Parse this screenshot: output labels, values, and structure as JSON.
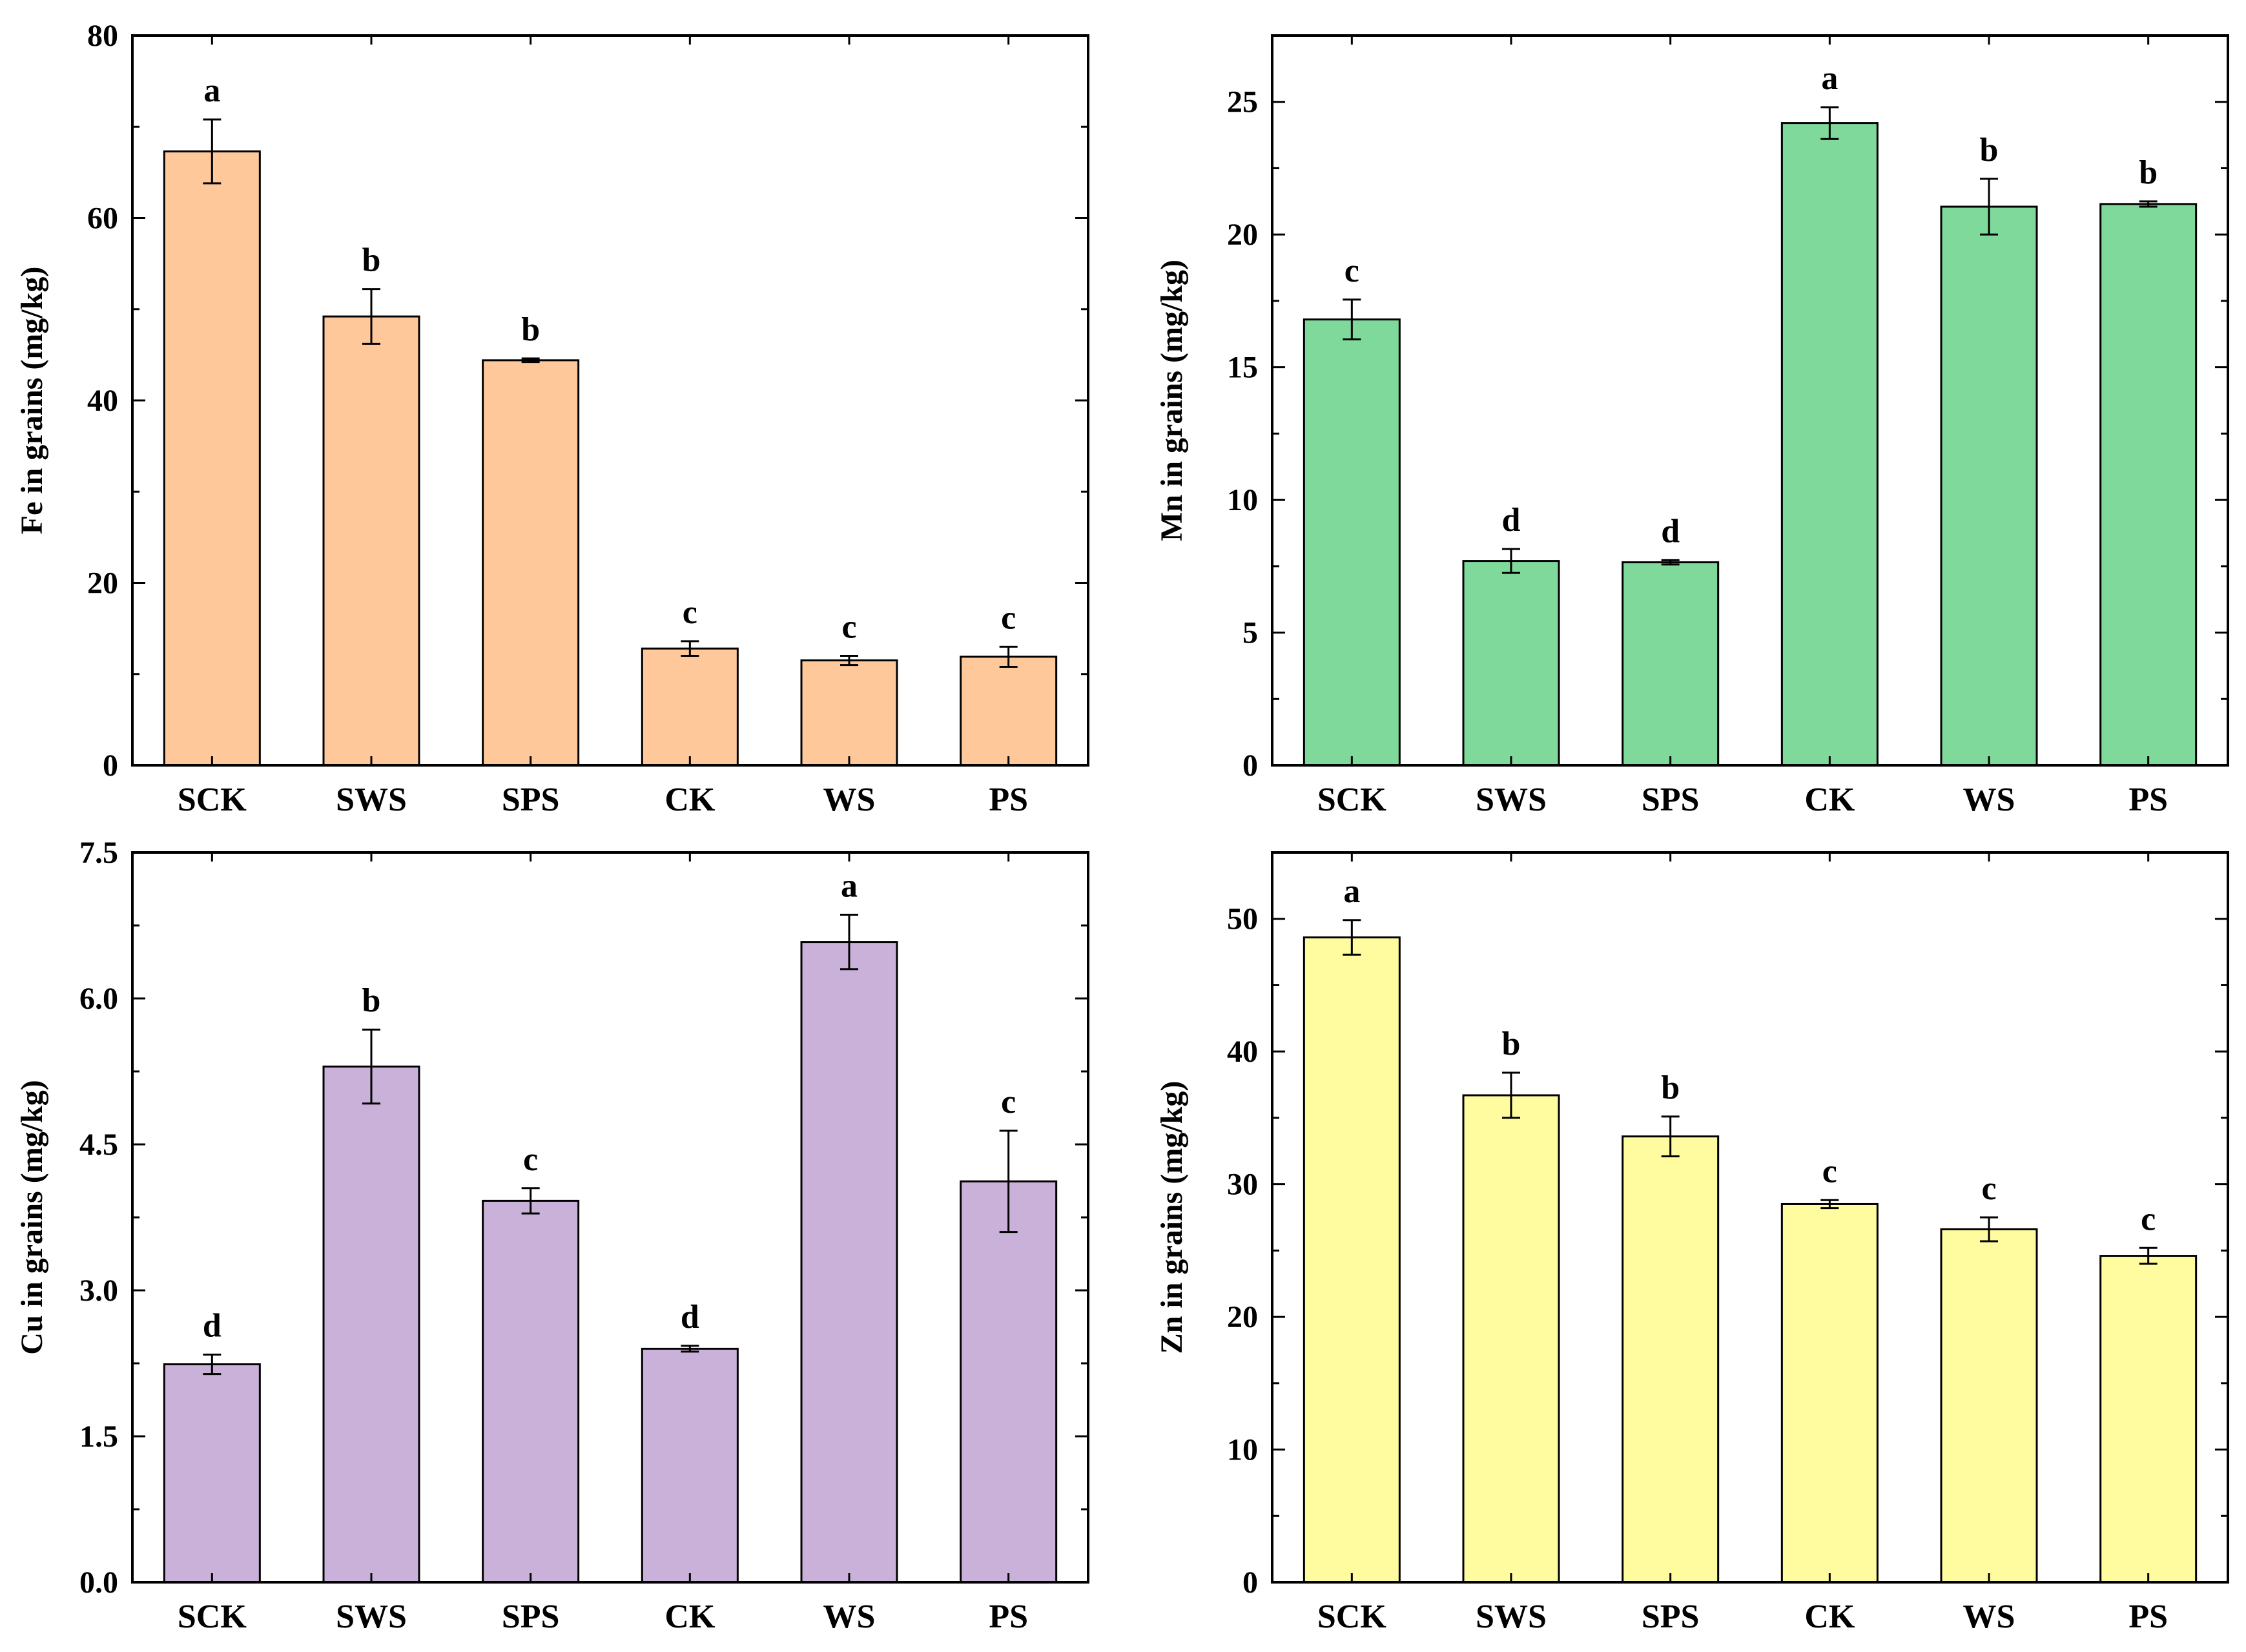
{
  "chart_data": [
    {
      "type": "bar",
      "categories": [
        "SCK",
        "SWS",
        "SPS",
        "CK",
        "WS",
        "PS"
      ],
      "values": [
        67.3,
        49.2,
        44.4,
        12.8,
        11.5,
        11.9
      ],
      "errors": [
        3.5,
        3.0,
        0.2,
        0.8,
        0.5,
        1.1
      ],
      "significance": [
        "a",
        "b",
        "b",
        "c",
        "c",
        "c"
      ],
      "title": "",
      "xlabel": "",
      "ylabel": "Fe in grains (mg/kg)",
      "ylim": [
        0,
        80
      ],
      "yticks": [
        0,
        20,
        40,
        60,
        80
      ],
      "yticklabels": [
        "0",
        "20",
        "40",
        "60",
        "80"
      ],
      "bar_color": "#ffc89a",
      "grid": false
    },
    {
      "type": "bar",
      "categories": [
        "SCK",
        "SWS",
        "SPS",
        "CK",
        "WS",
        "PS"
      ],
      "values": [
        16.8,
        7.7,
        7.65,
        24.2,
        21.05,
        21.15
      ],
      "errors": [
        0.75,
        0.45,
        0.08,
        0.6,
        1.05,
        0.1
      ],
      "significance": [
        "c",
        "d",
        "d",
        "a",
        "b",
        "b"
      ],
      "title": "",
      "xlabel": "",
      "ylabel": "Mn in grains (mg/kg)",
      "ylim": [
        0,
        27.5
      ],
      "yticks": [
        0,
        5,
        10,
        15,
        20,
        25
      ],
      "yticklabels": [
        "0",
        "5",
        "10",
        "15",
        "20",
        "25"
      ],
      "bar_color": "#7fd99a",
      "grid": false
    },
    {
      "type": "bar",
      "categories": [
        "SCK",
        "SWS",
        "SPS",
        "CK",
        "WS",
        "PS"
      ],
      "values": [
        2.24,
        5.3,
        3.92,
        2.4,
        6.58,
        4.12
      ],
      "errors": [
        0.1,
        0.38,
        0.13,
        0.03,
        0.28,
        0.52
      ],
      "significance": [
        "d",
        "b",
        "c",
        "d",
        "a",
        "c"
      ],
      "title": "",
      "xlabel": "",
      "ylabel": "Cu in grains (mg/kg)",
      "ylim": [
        0,
        7.5
      ],
      "yticks": [
        0,
        1.5,
        3.0,
        4.5,
        6.0,
        7.5
      ],
      "yticklabels": [
        "0.0",
        "1.5",
        "3.0",
        "4.5",
        "6.0",
        "7.5"
      ],
      "bar_color": "#c9b1d9",
      "grid": false
    },
    {
      "type": "bar",
      "categories": [
        "SCK",
        "SWS",
        "SPS",
        "CK",
        "WS",
        "PS"
      ],
      "values": [
        48.6,
        36.7,
        33.6,
        28.5,
        26.6,
        24.6
      ],
      "errors": [
        1.3,
        1.7,
        1.5,
        0.3,
        0.9,
        0.6
      ],
      "significance": [
        "a",
        "b",
        "b",
        "c",
        "c",
        "c"
      ],
      "title": "",
      "xlabel": "",
      "ylabel": "Zn in grains (mg/kg)",
      "ylim": [
        0,
        55
      ],
      "yticks": [
        0,
        10,
        20,
        30,
        40,
        50
      ],
      "yticklabels": [
        "0",
        "10",
        "20",
        "30",
        "40",
        "50"
      ],
      "bar_color": "#fffb9f",
      "grid": false
    }
  ]
}
